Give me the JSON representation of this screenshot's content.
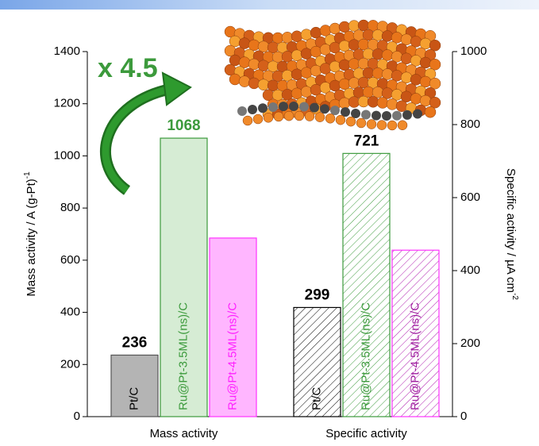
{
  "chart_data": {
    "type": "grouped-bar-dual-axis",
    "annotation": "x 4.5",
    "categories": [
      "Pt/C",
      "Ru@Pt-3.5ML(ns)/C",
      "Ru@Pt-4.5ML(ns)/C"
    ],
    "ylabel": {
      "text": "Mass activity / A (g-Pt)",
      "sup": "-1"
    },
    "y2label": {
      "text": "Specific activity / µA cm",
      "sup": "-2"
    },
    "ylim": [
      0,
      1400
    ],
    "yticks": [
      0,
      200,
      400,
      600,
      800,
      1000,
      1200,
      1400
    ],
    "y2lim": [
      0,
      1000
    ],
    "y2ticks": [
      0,
      200,
      400,
      600,
      800,
      1000
    ],
    "series": [
      {
        "name": "Mass activity",
        "axis": "y",
        "hatch": false,
        "colors": [
          "#b4b4b4",
          "#d6ecd4",
          "#ffb6ff"
        ],
        "edge_colors": [
          "#555555",
          "#3c9a3c",
          "#ff33ff"
        ],
        "text_colors": [
          "#000000",
          "#3c9a3c",
          "#ff22ff"
        ],
        "values": [
          236,
          1068,
          685
        ],
        "value_labels": [
          "236",
          "1068",
          null
        ],
        "value_label_colors": [
          "#000000",
          "#3c9a3c",
          null
        ]
      },
      {
        "name": "Specific activity",
        "axis": "y2",
        "hatch": true,
        "colors": [
          "#000000",
          "#3c9a3c",
          "#b020b0"
        ],
        "edge_colors": [
          "#000000",
          "#3c9a3c",
          "#ff33ff"
        ],
        "text_colors": [
          "#000000",
          "#3c9a3c",
          "#a020a0"
        ],
        "values": [
          299,
          721,
          456
        ],
        "value_labels": [
          "299",
          "721",
          null
        ],
        "value_label_colors": [
          "#000000",
          "#000000",
          null
        ]
      }
    ]
  }
}
